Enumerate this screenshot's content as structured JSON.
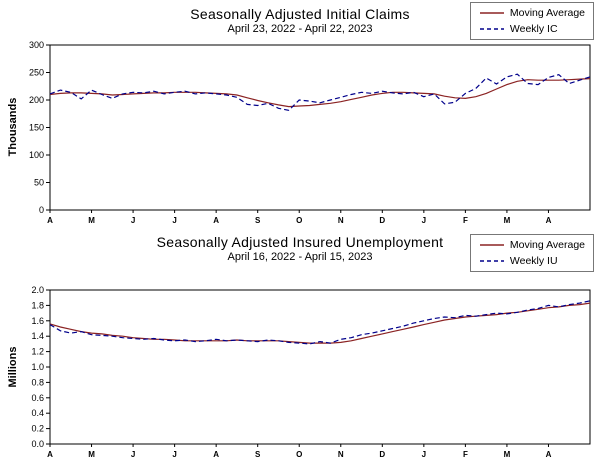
{
  "page": {
    "background": "#ffffff"
  },
  "chart_data": [
    {
      "type": "line",
      "title": "Seasonally Adjusted Initial Claims",
      "subtitle": "April 23, 2022 - April 22, 2023",
      "ylabel": "Thousands",
      "ylim": [
        0,
        300
      ],
      "ystep": 50,
      "y_decimals": 0,
      "grid": false,
      "legend_position": "top-right",
      "x_tick_labels": [
        "A",
        "M",
        "J",
        "J",
        "A",
        "S",
        "O",
        "N",
        "D",
        "J",
        "F",
        "M",
        "A"
      ],
      "series": [
        {
          "name": "Moving Average",
          "color": "#8b2323",
          "dash": "none",
          "values": [
            210,
            212,
            213,
            213,
            212,
            211,
            209,
            210,
            211,
            212,
            213,
            213,
            214,
            214,
            214,
            213,
            212,
            211,
            209,
            204,
            199,
            195,
            191,
            188,
            189,
            190,
            192,
            194,
            197,
            201,
            205,
            209,
            212,
            214,
            214,
            213,
            212,
            211,
            207,
            204,
            203,
            206,
            212,
            220,
            228,
            234,
            237,
            236,
            236,
            236,
            237,
            238,
            239
          ]
        },
        {
          "name": "Weekly IC",
          "color": "#00008b",
          "dash": "5,3",
          "values": [
            211,
            218,
            214,
            202,
            218,
            210,
            203,
            211,
            214,
            213,
            216,
            211,
            214,
            216,
            211,
            213,
            211,
            209,
            205,
            192,
            190,
            194,
            185,
            181,
            200,
            198,
            195,
            200,
            205,
            210,
            214,
            212,
            216,
            213,
            211,
            214,
            206,
            211,
            193,
            196,
            212,
            221,
            240,
            229,
            242,
            247,
            230,
            228,
            241,
            246,
            230,
            236,
            242
          ]
        }
      ]
    },
    {
      "type": "line",
      "title": "Seasonally Adjusted Insured  Unemployment",
      "subtitle": "April 16, 2022 - April 15, 2023",
      "ylabel": "Millions",
      "ylim": [
        0,
        2.0
      ],
      "ystep": 0.2,
      "y_decimals": 1,
      "grid": false,
      "legend_position": "top-right",
      "x_tick_labels": [
        "A",
        "M",
        "J",
        "J",
        "A",
        "S",
        "O",
        "N",
        "D",
        "J",
        "F",
        "M",
        "A"
      ],
      "series": [
        {
          "name": "Moving Average",
          "color": "#8b2323",
          "dash": "none",
          "values": [
            1.56,
            1.52,
            1.49,
            1.46,
            1.44,
            1.43,
            1.41,
            1.4,
            1.38,
            1.37,
            1.36,
            1.36,
            1.35,
            1.34,
            1.34,
            1.34,
            1.34,
            1.34,
            1.35,
            1.34,
            1.34,
            1.34,
            1.34,
            1.33,
            1.32,
            1.31,
            1.31,
            1.31,
            1.32,
            1.34,
            1.37,
            1.4,
            1.43,
            1.46,
            1.49,
            1.52,
            1.55,
            1.58,
            1.61,
            1.63,
            1.65,
            1.66,
            1.67,
            1.68,
            1.7,
            1.71,
            1.73,
            1.75,
            1.77,
            1.78,
            1.8,
            1.81,
            1.83
          ]
        },
        {
          "name": "Weekly IU",
          "color": "#00008b",
          "dash": "5,3",
          "values": [
            1.55,
            1.47,
            1.44,
            1.46,
            1.42,
            1.41,
            1.4,
            1.38,
            1.37,
            1.36,
            1.37,
            1.35,
            1.34,
            1.35,
            1.33,
            1.34,
            1.36,
            1.34,
            1.35,
            1.34,
            1.33,
            1.35,
            1.34,
            1.32,
            1.31,
            1.3,
            1.33,
            1.31,
            1.36,
            1.38,
            1.42,
            1.44,
            1.47,
            1.5,
            1.53,
            1.57,
            1.6,
            1.63,
            1.65,
            1.64,
            1.67,
            1.66,
            1.68,
            1.7,
            1.69,
            1.71,
            1.74,
            1.76,
            1.8,
            1.78,
            1.81,
            1.83,
            1.86
          ]
        }
      ]
    }
  ]
}
